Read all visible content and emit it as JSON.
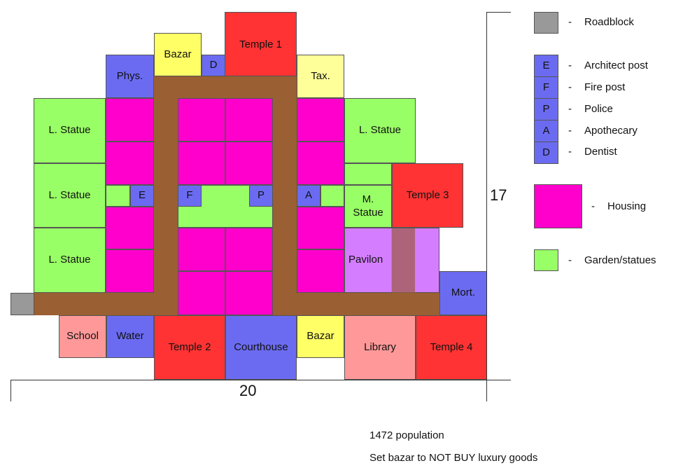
{
  "colors": {
    "road": "#9a5f32",
    "roadblock": "#999999",
    "service": "#6b6bf2",
    "housing": "#ff00cc",
    "garden": "#99ff66",
    "temple": "#ff3333",
    "bazar": "#ffff66",
    "tax": "#ffff99",
    "school": "#ff9999",
    "pavilion": "#cc66ff"
  },
  "map": {
    "phys": "Phys.",
    "bazar_top": "Bazar",
    "dentist_top": "D",
    "temple1": "Temple 1",
    "tax": "Tax.",
    "lstatue1": "L. Statue",
    "lstatue2": "L. Statue",
    "lstatue3": "L. Statue",
    "lstatue4": "L. Statue",
    "mstatue": "M. Statue",
    "temple3": "Temple 3",
    "pavilion": "Pavilon",
    "mort": "Mort.",
    "e": "E",
    "f": "F",
    "p": "P",
    "a": "A",
    "school": "School",
    "water": "Water",
    "temple2": "Temple 2",
    "courthouse": "Courthouse",
    "bazar_bottom": "Bazar",
    "library": "Library",
    "temple4": "Temple 4",
    "dim_height": "17",
    "dim_width": "20"
  },
  "legend": {
    "roadblock": "Roadblock",
    "architect": "Architect post",
    "fire": "Fire post",
    "police": "Police",
    "apothecary": "Apothecary",
    "dentist": "Dentist",
    "housing": "Housing",
    "garden": "Garden/statues",
    "dash": "-",
    "e": "E",
    "f": "F",
    "p": "P",
    "a": "A",
    "d": "D"
  },
  "notes": {
    "population": "1472 population",
    "bazar_setting": "Set bazar to NOT BUY luxury goods"
  }
}
